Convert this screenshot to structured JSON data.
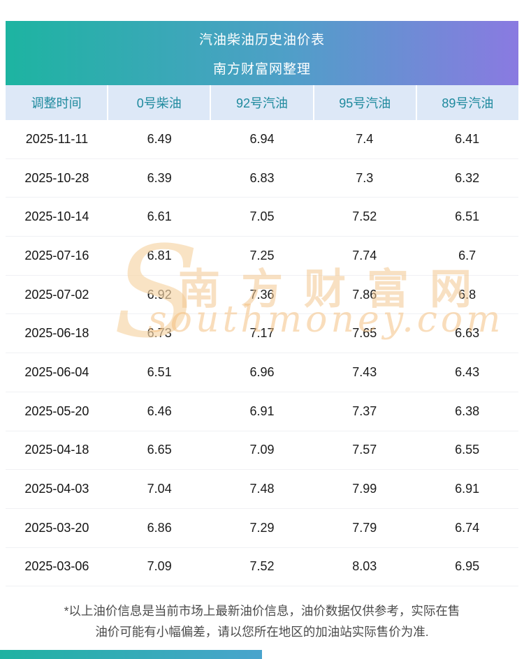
{
  "banner": {
    "title": "汽油柴油历史油价表",
    "subtitle": "南方财富网整理"
  },
  "chart_data": {
    "type": "table",
    "title": "汽油柴油历史油价表",
    "columns": [
      "调整时间",
      "0号柴油",
      "92号汽油",
      "95号汽油",
      "89号汽油"
    ],
    "rows": [
      [
        "2025-11-11",
        "6.49",
        "6.94",
        "7.4",
        "6.41"
      ],
      [
        "2025-10-28",
        "6.39",
        "6.83",
        "7.3",
        "6.32"
      ],
      [
        "2025-10-14",
        "6.61",
        "7.05",
        "7.52",
        "6.51"
      ],
      [
        "2025-07-16",
        "6.81",
        "7.25",
        "7.74",
        "6.7"
      ],
      [
        "2025-07-02",
        "6.92",
        "7.36",
        "7.86",
        "6.8"
      ],
      [
        "2025-06-18",
        "6.73",
        "7.17",
        "7.65",
        "6.63"
      ],
      [
        "2025-06-04",
        "6.51",
        "6.96",
        "7.43",
        "6.43"
      ],
      [
        "2025-05-20",
        "6.46",
        "6.91",
        "7.37",
        "6.38"
      ],
      [
        "2025-04-18",
        "6.65",
        "7.09",
        "7.57",
        "6.55"
      ],
      [
        "2025-04-03",
        "7.04",
        "7.48",
        "7.99",
        "6.91"
      ],
      [
        "2025-03-20",
        "6.86",
        "7.29",
        "7.79",
        "6.74"
      ],
      [
        "2025-03-06",
        "7.09",
        "7.52",
        "8.03",
        "6.95"
      ]
    ]
  },
  "watermark": {
    "swoosh": "S",
    "line_cn": "南方财富网",
    "line_en": "southmoney.com"
  },
  "footer": {
    "note_line1": "*以上油价信息是当前市场上最新油价信息，油价数据仅供参考，实际在售",
    "note_line2": "油价可能有小幅偏差，请以您所在地区的加油站实际售价为准."
  },
  "colors": {
    "banner_gradient_start": "#1db4a1",
    "banner_gradient_end": "#8a7ae1",
    "header_row_bg": "#dde8f7",
    "header_row_text": "#1f8a9e",
    "body_text": "#1b1b1b",
    "footer_text": "#4a4a4a",
    "watermark_orange": "#f2c78f"
  }
}
